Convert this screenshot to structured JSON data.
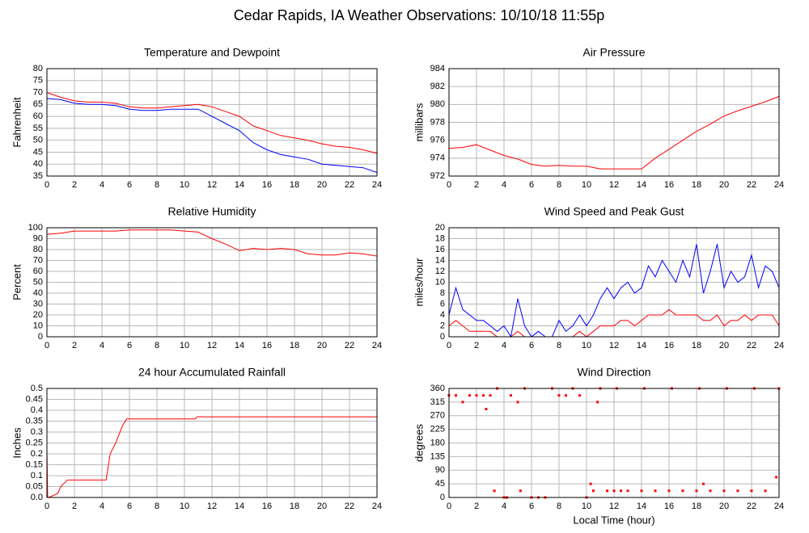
{
  "title": "Cedar Rapids, IA Weather Observations: 10/10/18 11:55p",
  "chart_data": [
    {
      "type": "line",
      "title": "Temperature and Dewpoint",
      "y_label": "Fahrenheit",
      "x": [
        0,
        1,
        2,
        3,
        4,
        5,
        6,
        7,
        8,
        9,
        10,
        11,
        12,
        13,
        14,
        15,
        16,
        17,
        18,
        19,
        20,
        21,
        22,
        23,
        24
      ],
      "series": [
        {
          "color": "#ff0000",
          "values": [
            70,
            68,
            66.5,
            66,
            66,
            65.5,
            64,
            63.5,
            63.5,
            64,
            64.5,
            65,
            64,
            62,
            60,
            56,
            54,
            52,
            51,
            50,
            48.5,
            47.5,
            47,
            46,
            44.5
          ]
        },
        {
          "color": "#0000ff",
          "values": [
            67.5,
            67,
            65.5,
            65,
            65,
            64.5,
            63,
            62.5,
            62.5,
            63,
            63,
            63,
            60,
            57,
            54,
            49,
            46,
            44,
            43,
            42,
            40,
            39.5,
            39,
            38.5,
            36.5
          ]
        }
      ],
      "xlim": [
        0,
        24
      ],
      "xticks": [
        0,
        2,
        4,
        6,
        8,
        10,
        12,
        14,
        16,
        18,
        20,
        22,
        24
      ],
      "ylim": [
        35,
        80
      ],
      "yticks": [
        35,
        40,
        45,
        50,
        55,
        60,
        65,
        70,
        75,
        80
      ],
      "grid": true
    },
    {
      "type": "line",
      "title": "Air Pressure",
      "y_label": "millibars",
      "x": [
        0,
        1,
        2,
        3,
        4,
        5,
        6,
        7,
        8,
        9,
        10,
        11,
        12,
        13,
        14,
        15,
        16,
        17,
        18,
        19,
        20,
        21,
        22,
        23,
        24
      ],
      "series": [
        {
          "color": "#ff0000",
          "values": [
            975.1,
            975.2,
            975.5,
            974.9,
            974.3,
            973.9,
            973.3,
            973.1,
            973.2,
            973.1,
            973.1,
            972.8,
            972.8,
            972.8,
            972.8,
            974.0,
            975.0,
            976.0,
            977.0,
            977.8,
            978.7,
            979.3,
            979.8,
            980.3,
            980.9
          ]
        }
      ],
      "xlim": [
        0,
        24
      ],
      "xticks": [
        0,
        2,
        4,
        6,
        8,
        10,
        12,
        14,
        16,
        18,
        20,
        22,
        24
      ],
      "ylim": [
        972,
        984
      ],
      "yticks": [
        972,
        974,
        976,
        978,
        980,
        982,
        984
      ],
      "grid": true
    },
    {
      "type": "line",
      "title": "Relative Humidity",
      "y_label": "Percent",
      "x": [
        0,
        1,
        2,
        3,
        4,
        5,
        6,
        7,
        8,
        9,
        10,
        11,
        12,
        13,
        14,
        15,
        16,
        17,
        18,
        19,
        20,
        21,
        22,
        23,
        24
      ],
      "series": [
        {
          "color": "#ff0000",
          "values": [
            94,
            95,
            97,
            97,
            97,
            97,
            98,
            98,
            98,
            98,
            97,
            96,
            90,
            85,
            79,
            81,
            80,
            81,
            80,
            76,
            75,
            75,
            77,
            76,
            74
          ]
        }
      ],
      "xlim": [
        0,
        24
      ],
      "xticks": [
        0,
        2,
        4,
        6,
        8,
        10,
        12,
        14,
        16,
        18,
        20,
        22,
        24
      ],
      "ylim": [
        0,
        100
      ],
      "yticks": [
        0,
        10,
        20,
        30,
        40,
        50,
        60,
        70,
        80,
        90,
        100
      ],
      "grid": true
    },
    {
      "type": "line",
      "title": "Wind Speed and Peak Gust",
      "y_label": "miles/hour",
      "x": [
        0,
        0.5,
        1,
        1.5,
        2,
        2.5,
        3,
        3.5,
        4,
        4.5,
        5,
        5.5,
        6,
        6.5,
        7,
        7.5,
        8,
        8.5,
        9,
        9.5,
        10,
        10.5,
        11,
        11.5,
        12,
        12.5,
        13,
        13.5,
        14,
        14.5,
        15,
        15.5,
        16,
        16.5,
        17,
        17.5,
        18,
        18.5,
        19,
        19.5,
        20,
        20.5,
        21,
        21.5,
        22,
        22.5,
        23,
        23.5,
        24
      ],
      "series": [
        {
          "color": "#0000ff",
          "values": [
            4,
            9,
            5,
            4,
            3,
            3,
            2,
            1,
            2,
            0,
            7,
            2,
            0,
            1,
            0,
            0,
            3,
            1,
            2,
            4,
            2,
            4,
            7,
            9,
            7,
            9,
            10,
            8,
            9,
            13,
            11,
            14,
            12,
            10,
            14,
            11,
            17,
            8,
            12,
            17,
            9,
            12,
            10,
            11,
            15,
            9,
            13,
            12,
            9
          ]
        },
        {
          "color": "#ff0000",
          "values": [
            2,
            3,
            2,
            1,
            1,
            1,
            1,
            0,
            0,
            0,
            1,
            0,
            0,
            0,
            0,
            0,
            0,
            0,
            0,
            1,
            0,
            1,
            2,
            2,
            2,
            3,
            3,
            2,
            3,
            4,
            4,
            4,
            5,
            4,
            4,
            4,
            4,
            3,
            3,
            4,
            2,
            3,
            3,
            4,
            3,
            4,
            4,
            4,
            2
          ]
        }
      ],
      "xlim": [
        0,
        24
      ],
      "xticks": [
        0,
        2,
        4,
        6,
        8,
        10,
        12,
        14,
        16,
        18,
        20,
        22,
        24
      ],
      "ylim": [
        0,
        20
      ],
      "yticks": [
        0,
        2,
        4,
        6,
        8,
        10,
        12,
        14,
        16,
        18,
        20
      ],
      "grid": true
    },
    {
      "type": "line",
      "title": "24 hour Accumulated Rainfall",
      "y_label": "Inches",
      "x": [
        0,
        0.05,
        0.1,
        0.5,
        0.8,
        1.0,
        1.5,
        4.3,
        4.6,
        5.0,
        5.5,
        5.8,
        10.8,
        10.9,
        24
      ],
      "series": [
        {
          "color": "#ff0000",
          "values": [
            0.22,
            0,
            0,
            0.01,
            0.02,
            0.05,
            0.08,
            0.08,
            0.2,
            0.25,
            0.33,
            0.36,
            0.36,
            0.37,
            0.37
          ]
        }
      ],
      "xlim": [
        0,
        24
      ],
      "xticks": [
        0,
        2,
        4,
        6,
        8,
        10,
        12,
        14,
        16,
        18,
        20,
        22,
        24
      ],
      "ylim": [
        0,
        0.5
      ],
      "yticks": [
        {
          "value": 0,
          "label": "0.0"
        },
        0.05,
        0.1,
        0.15,
        0.2,
        0.25,
        0.3,
        0.35,
        0.4,
        0.45,
        0.5
      ],
      "grid": true
    },
    {
      "type": "scatter",
      "title": "Wind Direction",
      "y_label": "degrees",
      "x_label": "Local Time (hour)",
      "x": [
        0,
        0.5,
        1,
        1.5,
        2,
        2.5,
        2.7,
        3,
        3.3,
        3.5,
        4,
        4.2,
        4.5,
        5,
        5.2,
        5.5,
        6,
        6.5,
        7,
        7.5,
        8,
        8.5,
        9,
        9.5,
        10,
        10.3,
        10.5,
        10.8,
        11,
        11.5,
        12,
        12.2,
        12.5,
        13,
        14,
        14.2,
        15,
        16,
        16.2,
        17,
        18,
        18.2,
        18.5,
        19,
        20,
        20.2,
        21,
        22,
        22.2,
        23,
        23.8,
        24
      ],
      "series": [
        {
          "color": "#ff0000",
          "values": [
            337,
            337,
            315,
            337,
            337,
            337,
            292,
            337,
            22,
            360,
            0,
            0,
            337,
            315,
            22,
            360,
            0,
            0,
            0,
            360,
            337,
            337,
            360,
            337,
            0,
            45,
            22,
            315,
            360,
            22,
            22,
            360,
            22,
            22,
            22,
            360,
            22,
            22,
            360,
            22,
            22,
            360,
            45,
            22,
            22,
            360,
            22,
            22,
            360,
            22,
            67,
            360
          ]
        }
      ],
      "xlim": [
        0,
        24
      ],
      "xticks": [
        0,
        2,
        4,
        6,
        8,
        10,
        12,
        14,
        16,
        18,
        20,
        22,
        24
      ],
      "ylim": [
        0,
        360
      ],
      "yticks": [
        0,
        45,
        90,
        135,
        180,
        225,
        270,
        315,
        360
      ],
      "grid": true
    }
  ]
}
